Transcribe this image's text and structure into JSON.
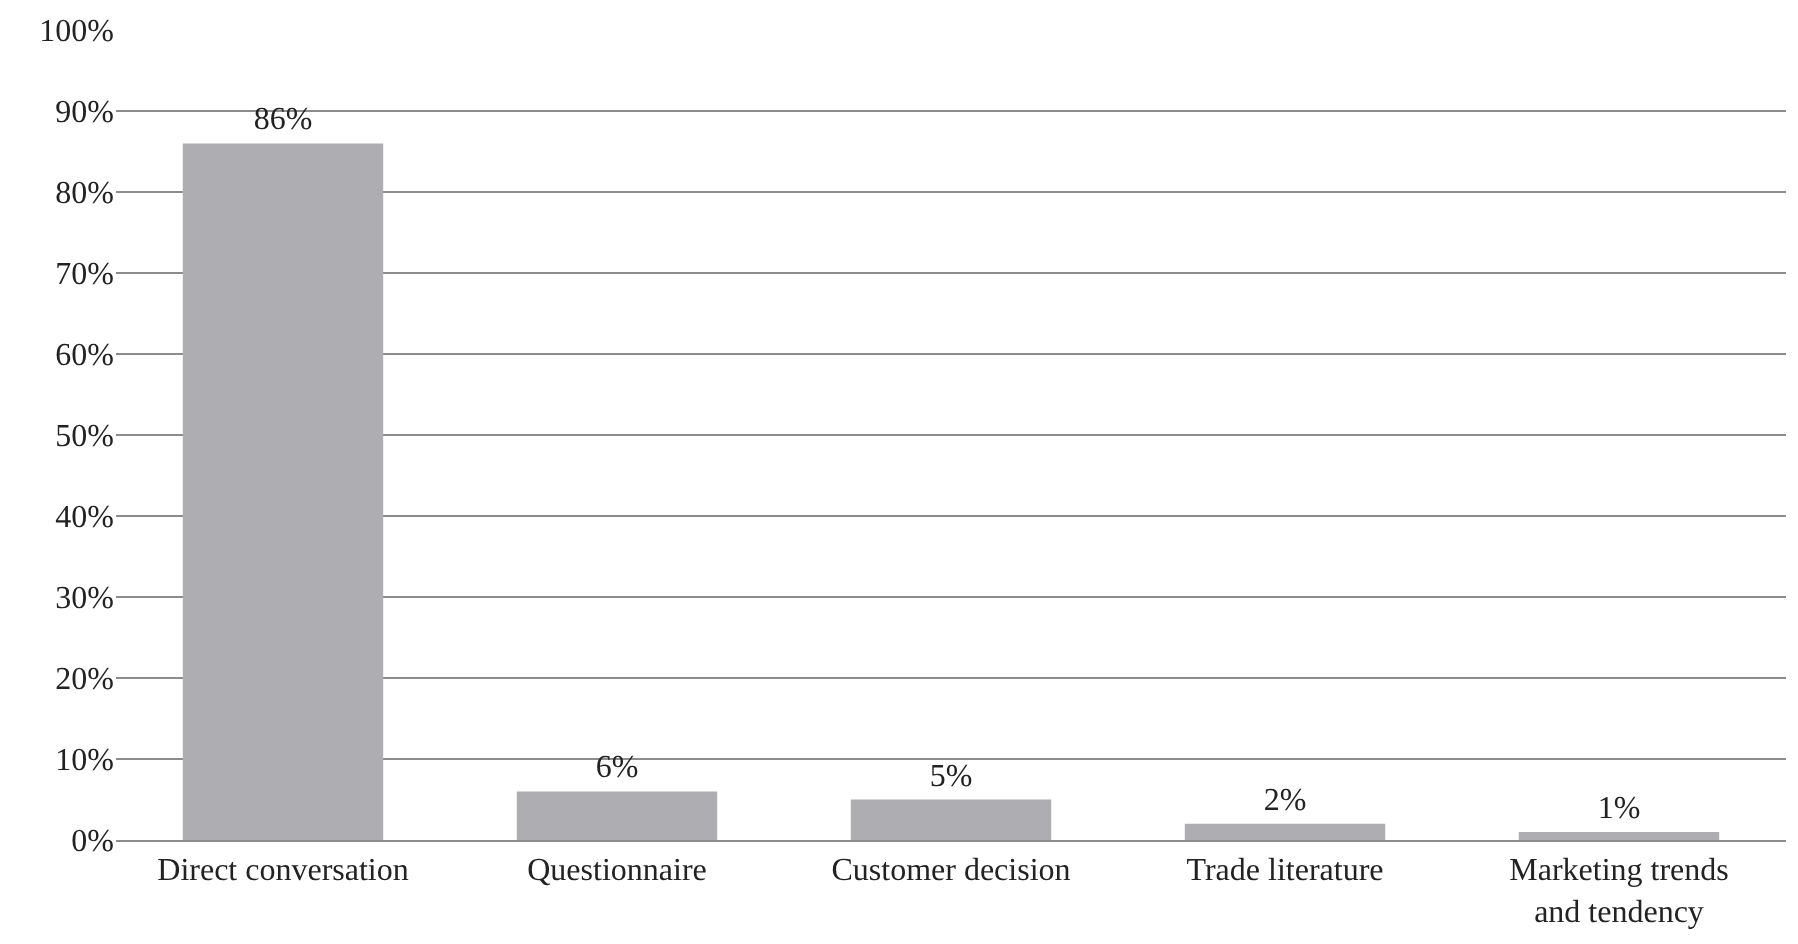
{
  "chart_data": {
    "type": "bar",
    "categories": [
      "Direct conversation",
      "Questionnaire",
      "Customer decision",
      "Trade literature",
      "Marketing trends and tendency"
    ],
    "values": [
      86,
      6,
      5,
      2,
      1
    ],
    "value_labels": [
      "86%",
      "6%",
      "5%",
      "2%",
      "1%"
    ],
    "color": "#aeaeb2",
    "ylim": [
      0,
      100
    ],
    "yticks": [
      {
        "value": 0,
        "label": "0%"
      },
      {
        "value": 10,
        "label": "10%"
      },
      {
        "value": 20,
        "label": "20%"
      },
      {
        "value": 30,
        "label": "30%"
      },
      {
        "value": 40,
        "label": "40%"
      },
      {
        "value": 50,
        "label": "50%"
      },
      {
        "value": 60,
        "label": "60%"
      },
      {
        "value": 70,
        "label": "70%"
      },
      {
        "value": 80,
        "label": "80%"
      },
      {
        "value": 90,
        "label": "90%"
      },
      {
        "value": 100,
        "label": "100%"
      }
    ],
    "grid": "y",
    "legend": false
  }
}
